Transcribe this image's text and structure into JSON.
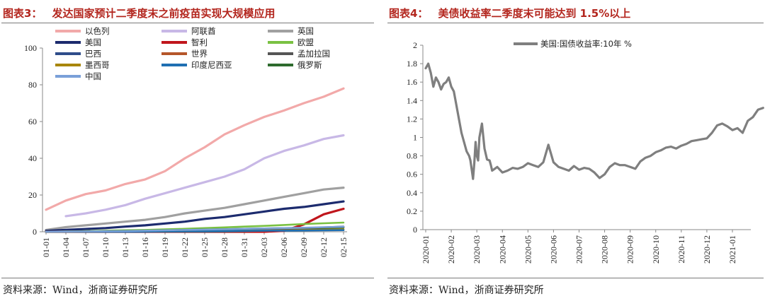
{
  "left": {
    "title_num": "图表3：",
    "title_text": "发达国家预计二季度末之前疫苗实现大规模应用",
    "source": "资料来源：Wind，浙商证券研究所"
  },
  "right": {
    "title_num": "图表4：",
    "title_text": "美债收益率二季度末可能达到 1.5%以上",
    "source": "资料来源：Wind，浙商证券研究所"
  },
  "chart_data": [
    {
      "type": "line",
      "title": "发达国家预计二季度末之前疫苗实现大规模应用",
      "x": [
        "01-01",
        "01-04",
        "01-07",
        "01-10",
        "01-13",
        "01-16",
        "01-19",
        "01-22",
        "01-25",
        "01-28",
        "01-31",
        "02-03",
        "02-06",
        "02-09",
        "02-12",
        "02-15"
      ],
      "ylim": [
        0,
        100
      ],
      "yticks": [
        0,
        20,
        40,
        60,
        80,
        100
      ],
      "legend_position": "top",
      "series": [
        {
          "name": "以色列",
          "color": "#f2a9a9",
          "values": [
            12,
            17,
            20.5,
            22.5,
            26,
            28.5,
            33,
            40,
            46,
            53,
            58,
            62.5,
            66,
            70,
            73.5,
            78
          ]
        },
        {
          "name": "阿联酋",
          "color": "#c8b8e6",
          "values": [
            null,
            8.5,
            10,
            12,
            14.5,
            18,
            21,
            24,
            27,
            30,
            34,
            40,
            44,
            47,
            50.5,
            52.5
          ]
        },
        {
          "name": "英国",
          "color": "#a0a0a0",
          "values": [
            1,
            2.5,
            3.5,
            4.5,
            5.5,
            6.5,
            8,
            10,
            11.5,
            13,
            15,
            17,
            19,
            21,
            23,
            24
          ]
        },
        {
          "name": "美国",
          "color": "#1c2b6e",
          "values": [
            0.5,
            1,
            1.5,
            2,
            2.8,
            3.5,
            4.5,
            5.5,
            7,
            8,
            9.5,
            11,
            12.5,
            13.5,
            15,
            16.5
          ]
        },
        {
          "name": "智利",
          "color": "#c0161c",
          "values": [
            0,
            0,
            0,
            0,
            0,
            0,
            0,
            0,
            0,
            0,
            0,
            0,
            0.5,
            4,
            9.5,
            12.5
          ]
        },
        {
          "name": "欧盟",
          "color": "#7ac142",
          "values": [
            0,
            0.2,
            0.4,
            0.6,
            0.8,
            1,
            1.3,
            1.6,
            2,
            2.4,
            2.8,
            3.2,
            3.7,
            4.2,
            4.6,
            5
          ]
        },
        {
          "name": "巴西",
          "color": "#2f4d8a",
          "values": [
            0,
            0,
            0,
            0,
            0,
            0,
            0.2,
            0.4,
            0.6,
            0.8,
            1,
            1.3,
            1.6,
            2,
            2.4,
            2.8
          ]
        },
        {
          "name": "世界",
          "color": "#b5562a",
          "values": [
            0,
            0.1,
            0.2,
            0.3,
            0.4,
            0.5,
            0.6,
            0.7,
            0.8,
            1,
            1.2,
            1.4,
            1.7,
            2,
            2.3,
            2.6
          ]
        },
        {
          "name": "孟加拉国",
          "color": "#555555",
          "values": [
            0,
            0,
            0,
            0,
            0,
            0,
            0,
            0,
            0,
            0.1,
            0.3,
            0.6,
            1,
            1.5,
            2,
            2.5
          ]
        },
        {
          "name": "墨西哥",
          "color": "#a8860b",
          "values": [
            0,
            0,
            0.1,
            0.2,
            0.3,
            0.4,
            0.5,
            0.5,
            0.6,
            0.6,
            0.7,
            0.7,
            0.8,
            1,
            1.2,
            1.4
          ]
        },
        {
          "name": "印度尼西亚",
          "color": "#1f6fb2",
          "values": [
            0,
            0,
            0,
            0,
            0,
            0.1,
            0.2,
            0.3,
            0.3,
            0.4,
            0.5,
            0.6,
            0.6,
            0.7,
            0.8,
            0.9
          ]
        },
        {
          "name": "俄罗斯",
          "color": "#2e6b2e",
          "values": [
            0,
            0.1,
            0.2,
            0.3,
            0.5,
            0.6,
            0.8,
            1,
            1.2,
            1.4,
            1.6,
            1.8,
            2,
            2.1,
            2.2,
            2.3
          ]
        },
        {
          "name": "中国",
          "color": "#7aa0d8",
          "values": [
            0,
            0.1,
            0.2,
            0.3,
            0.4,
            0.6,
            0.8,
            1,
            1.2,
            1.4,
            1.6,
            1.8,
            2,
            2.2,
            2.5,
            2.7
          ]
        }
      ]
    },
    {
      "type": "line",
      "title": "美债收益率二季度末可能达到 1.5%以上",
      "xticks": [
        "2020-01",
        "2020-02",
        "2020-03",
        "2020-04",
        "2020-05",
        "2020-06",
        "2020-07",
        "2020-08",
        "2020-09",
        "2020-10",
        "2020-11",
        "2020-12",
        "2021-01"
      ],
      "ylim": [
        0,
        2
      ],
      "yticks": [
        0,
        0.2,
        0.4,
        0.6,
        0.8,
        1,
        1.2,
        1.4,
        1.6,
        1.8,
        2
      ],
      "legend_position": "top-left",
      "series": [
        {
          "name": "美国:国债收益率:10年 %",
          "color": "#7f7f7f",
          "x_month": [
            0,
            0.1,
            0.2,
            0.3,
            0.4,
            0.5,
            0.6,
            0.7,
            0.8,
            0.9,
            1.0,
            1.1,
            1.2,
            1.3,
            1.4,
            1.5,
            1.6,
            1.7,
            1.75,
            1.8,
            1.85,
            1.9,
            1.95,
            2.0,
            2.05,
            2.1,
            2.2,
            2.3,
            2.4,
            2.5,
            2.55,
            2.6,
            2.7,
            2.8,
            2.9,
            3.0,
            3.2,
            3.4,
            3.6,
            3.8,
            4.0,
            4.2,
            4.4,
            4.6,
            4.8,
            5.0,
            5.2,
            5.4,
            5.6,
            5.8,
            6.0,
            6.2,
            6.4,
            6.6,
            6.8,
            7.0,
            7.2,
            7.4,
            7.6,
            7.8,
            8.0,
            8.2,
            8.4,
            8.6,
            8.8,
            9.0,
            9.2,
            9.4,
            9.6,
            9.8,
            10.0,
            10.2,
            10.4,
            10.6,
            10.8,
            11.0,
            11.2,
            11.4,
            11.6,
            11.8,
            12.0,
            12.2,
            12.4,
            12.6,
            12.8,
            13.0,
            13.2
          ],
          "values": [
            1.75,
            1.8,
            1.7,
            1.55,
            1.65,
            1.6,
            1.52,
            1.58,
            1.6,
            1.65,
            1.55,
            1.5,
            1.35,
            1.2,
            1.05,
            0.95,
            0.85,
            0.8,
            0.75,
            0.65,
            0.55,
            0.72,
            0.95,
            0.8,
            0.75,
            1.0,
            1.15,
            0.88,
            0.76,
            0.75,
            0.7,
            0.64,
            0.66,
            0.68,
            0.65,
            0.62,
            0.64,
            0.67,
            0.66,
            0.68,
            0.72,
            0.7,
            0.68,
            0.73,
            0.92,
            0.73,
            0.68,
            0.66,
            0.64,
            0.69,
            0.65,
            0.67,
            0.66,
            0.62,
            0.56,
            0.6,
            0.68,
            0.72,
            0.7,
            0.7,
            0.68,
            0.66,
            0.74,
            0.78,
            0.8,
            0.84,
            0.86,
            0.89,
            0.9,
            0.88,
            0.91,
            0.93,
            0.96,
            0.97,
            0.98,
            0.99,
            1.05,
            1.13,
            1.15,
            1.12,
            1.08,
            1.1,
            1.05,
            1.18,
            1.22,
            1.3,
            1.32
          ]
        }
      ]
    }
  ]
}
